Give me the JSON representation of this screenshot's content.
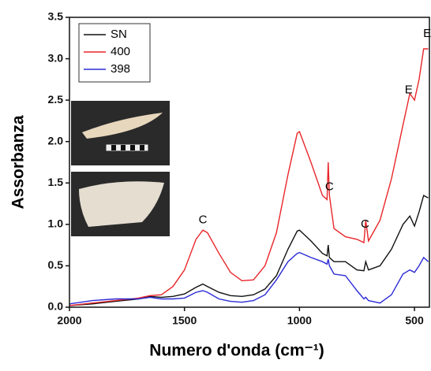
{
  "chart_data": {
    "type": "line",
    "x_label": "Numero d'onda (cm⁻¹)",
    "y_label": "Assorbanza",
    "x": [
      2000,
      1900,
      1800,
      1700,
      1650,
      1600,
      1550,
      1500,
      1450,
      1420,
      1400,
      1350,
      1300,
      1250,
      1200,
      1150,
      1100,
      1050,
      1010,
      1000,
      950,
      900,
      880,
      875,
      870,
      850,
      800,
      750,
      720,
      712,
      700,
      650,
      600,
      550,
      520,
      500,
      480,
      460,
      440
    ],
    "series": [
      {
        "name": "SN",
        "color": "#111111",
        "values": [
          0.02,
          0.04,
          0.07,
          0.1,
          0.13,
          0.12,
          0.13,
          0.16,
          0.24,
          0.28,
          0.25,
          0.18,
          0.14,
          0.13,
          0.15,
          0.22,
          0.38,
          0.7,
          0.92,
          0.93,
          0.8,
          0.65,
          0.62,
          0.75,
          0.6,
          0.55,
          0.55,
          0.45,
          0.44,
          0.55,
          0.45,
          0.5,
          0.7,
          1.0,
          1.1,
          0.98,
          1.15,
          1.35,
          1.32
        ]
      },
      {
        "name": "400",
        "color": "#e8262a",
        "values": [
          0.02,
          0.05,
          0.08,
          0.11,
          0.14,
          0.15,
          0.25,
          0.45,
          0.82,
          0.93,
          0.9,
          0.65,
          0.42,
          0.32,
          0.33,
          0.5,
          0.9,
          1.6,
          2.1,
          2.12,
          1.75,
          1.35,
          1.3,
          1.75,
          1.35,
          0.95,
          0.85,
          0.82,
          0.78,
          1.05,
          0.8,
          1.05,
          1.55,
          2.2,
          2.58,
          2.5,
          2.75,
          3.12,
          3.12
        ]
      },
      {
        "name": "398",
        "color": "#2b2bd6",
        "values": [
          0.04,
          0.08,
          0.1,
          0.1,
          0.12,
          0.1,
          0.1,
          0.11,
          0.18,
          0.2,
          0.18,
          0.1,
          0.07,
          0.06,
          0.08,
          0.15,
          0.33,
          0.55,
          0.65,
          0.66,
          0.6,
          0.55,
          0.52,
          0.58,
          0.5,
          0.4,
          0.38,
          0.2,
          0.1,
          0.12,
          0.08,
          0.05,
          0.15,
          0.4,
          0.45,
          0.42,
          0.5,
          0.6,
          0.55
        ]
      }
    ],
    "xlim": [
      2000,
      435
    ],
    "xticks": [
      2000,
      1500,
      1000,
      500
    ],
    "ylim": [
      0,
      3.5
    ],
    "yticks": [
      {
        "value": 0,
        "label": "0.0"
      },
      0.5,
      {
        "value": 1,
        "label": "1.0"
      },
      1.5,
      {
        "value": 2,
        "label": "2.0"
      },
      2.5,
      {
        "value": 3,
        "label": "3.0"
      },
      3.5
    ],
    "legend": "upper left",
    "annotations": [
      {
        "text": "C",
        "x": 1420,
        "y": 1.05
      },
      {
        "text": "C",
        "x": 870,
        "y": 1.45
      },
      {
        "text": "C",
        "x": 715,
        "y": 1.0
      },
      {
        "text": "E",
        "x": 525,
        "y": 2.62
      },
      {
        "text": "E",
        "x": 445,
        "y": 3.3
      }
    ]
  }
}
